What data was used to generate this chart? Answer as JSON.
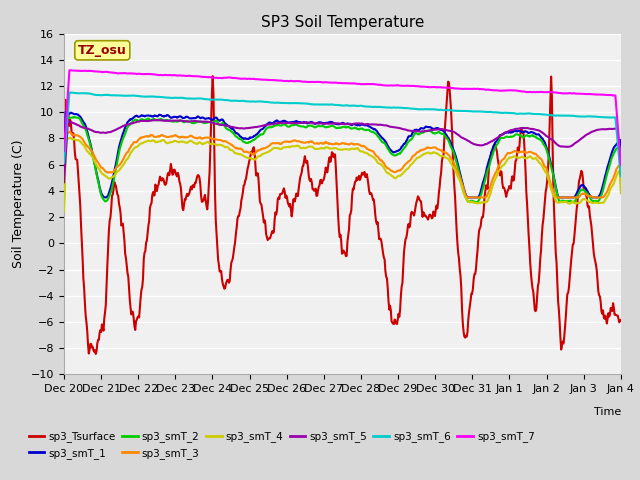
{
  "title": "SP3 Soil Temperature",
  "xlabel": "Time",
  "ylabel": "Soil Temperature (C)",
  "ylim": [
    -10,
    16
  ],
  "yticks": [
    -10,
    -8,
    -6,
    -4,
    -2,
    0,
    2,
    4,
    6,
    8,
    10,
    12,
    14,
    16
  ],
  "tz_label": "TZ_osu",
  "x_tick_labels": [
    "Dec 20",
    "Dec 21",
    "Dec 22",
    "Dec 23",
    "Dec 24",
    "Dec 25",
    "Dec 26",
    "Dec 27",
    "Dec 28",
    "Dec 29",
    "Dec 30",
    "Dec 31",
    "Jan 1",
    "Jan 2",
    "Jan 3",
    "Jan 4"
  ],
  "legend_entries": [
    {
      "label": "sp3_Tsurface",
      "color": "#cc0000",
      "lw": 1.5
    },
    {
      "label": "sp3_smT_1",
      "color": "#0000cc",
      "lw": 1.5
    },
    {
      "label": "sp3_smT_2",
      "color": "#00cc00",
      "lw": 1.5
    },
    {
      "label": "sp3_smT_3",
      "color": "#ff8800",
      "lw": 1.5
    },
    {
      "label": "sp3_smT_4",
      "color": "#cccc00",
      "lw": 1.5
    },
    {
      "label": "sp3_smT_5",
      "color": "#9900aa",
      "lw": 1.5
    },
    {
      "label": "sp3_smT_6",
      "color": "#00cccc",
      "lw": 1.5
    },
    {
      "label": "sp3_smT_7",
      "color": "#ff00ff",
      "lw": 1.5
    }
  ],
  "outer_bg_color": "#d8d8d8",
  "plot_bg_color": "#f0f0f0",
  "grid_color": "#ffffff",
  "tz_box_color": "#ffff99",
  "tz_text_color": "#990000"
}
